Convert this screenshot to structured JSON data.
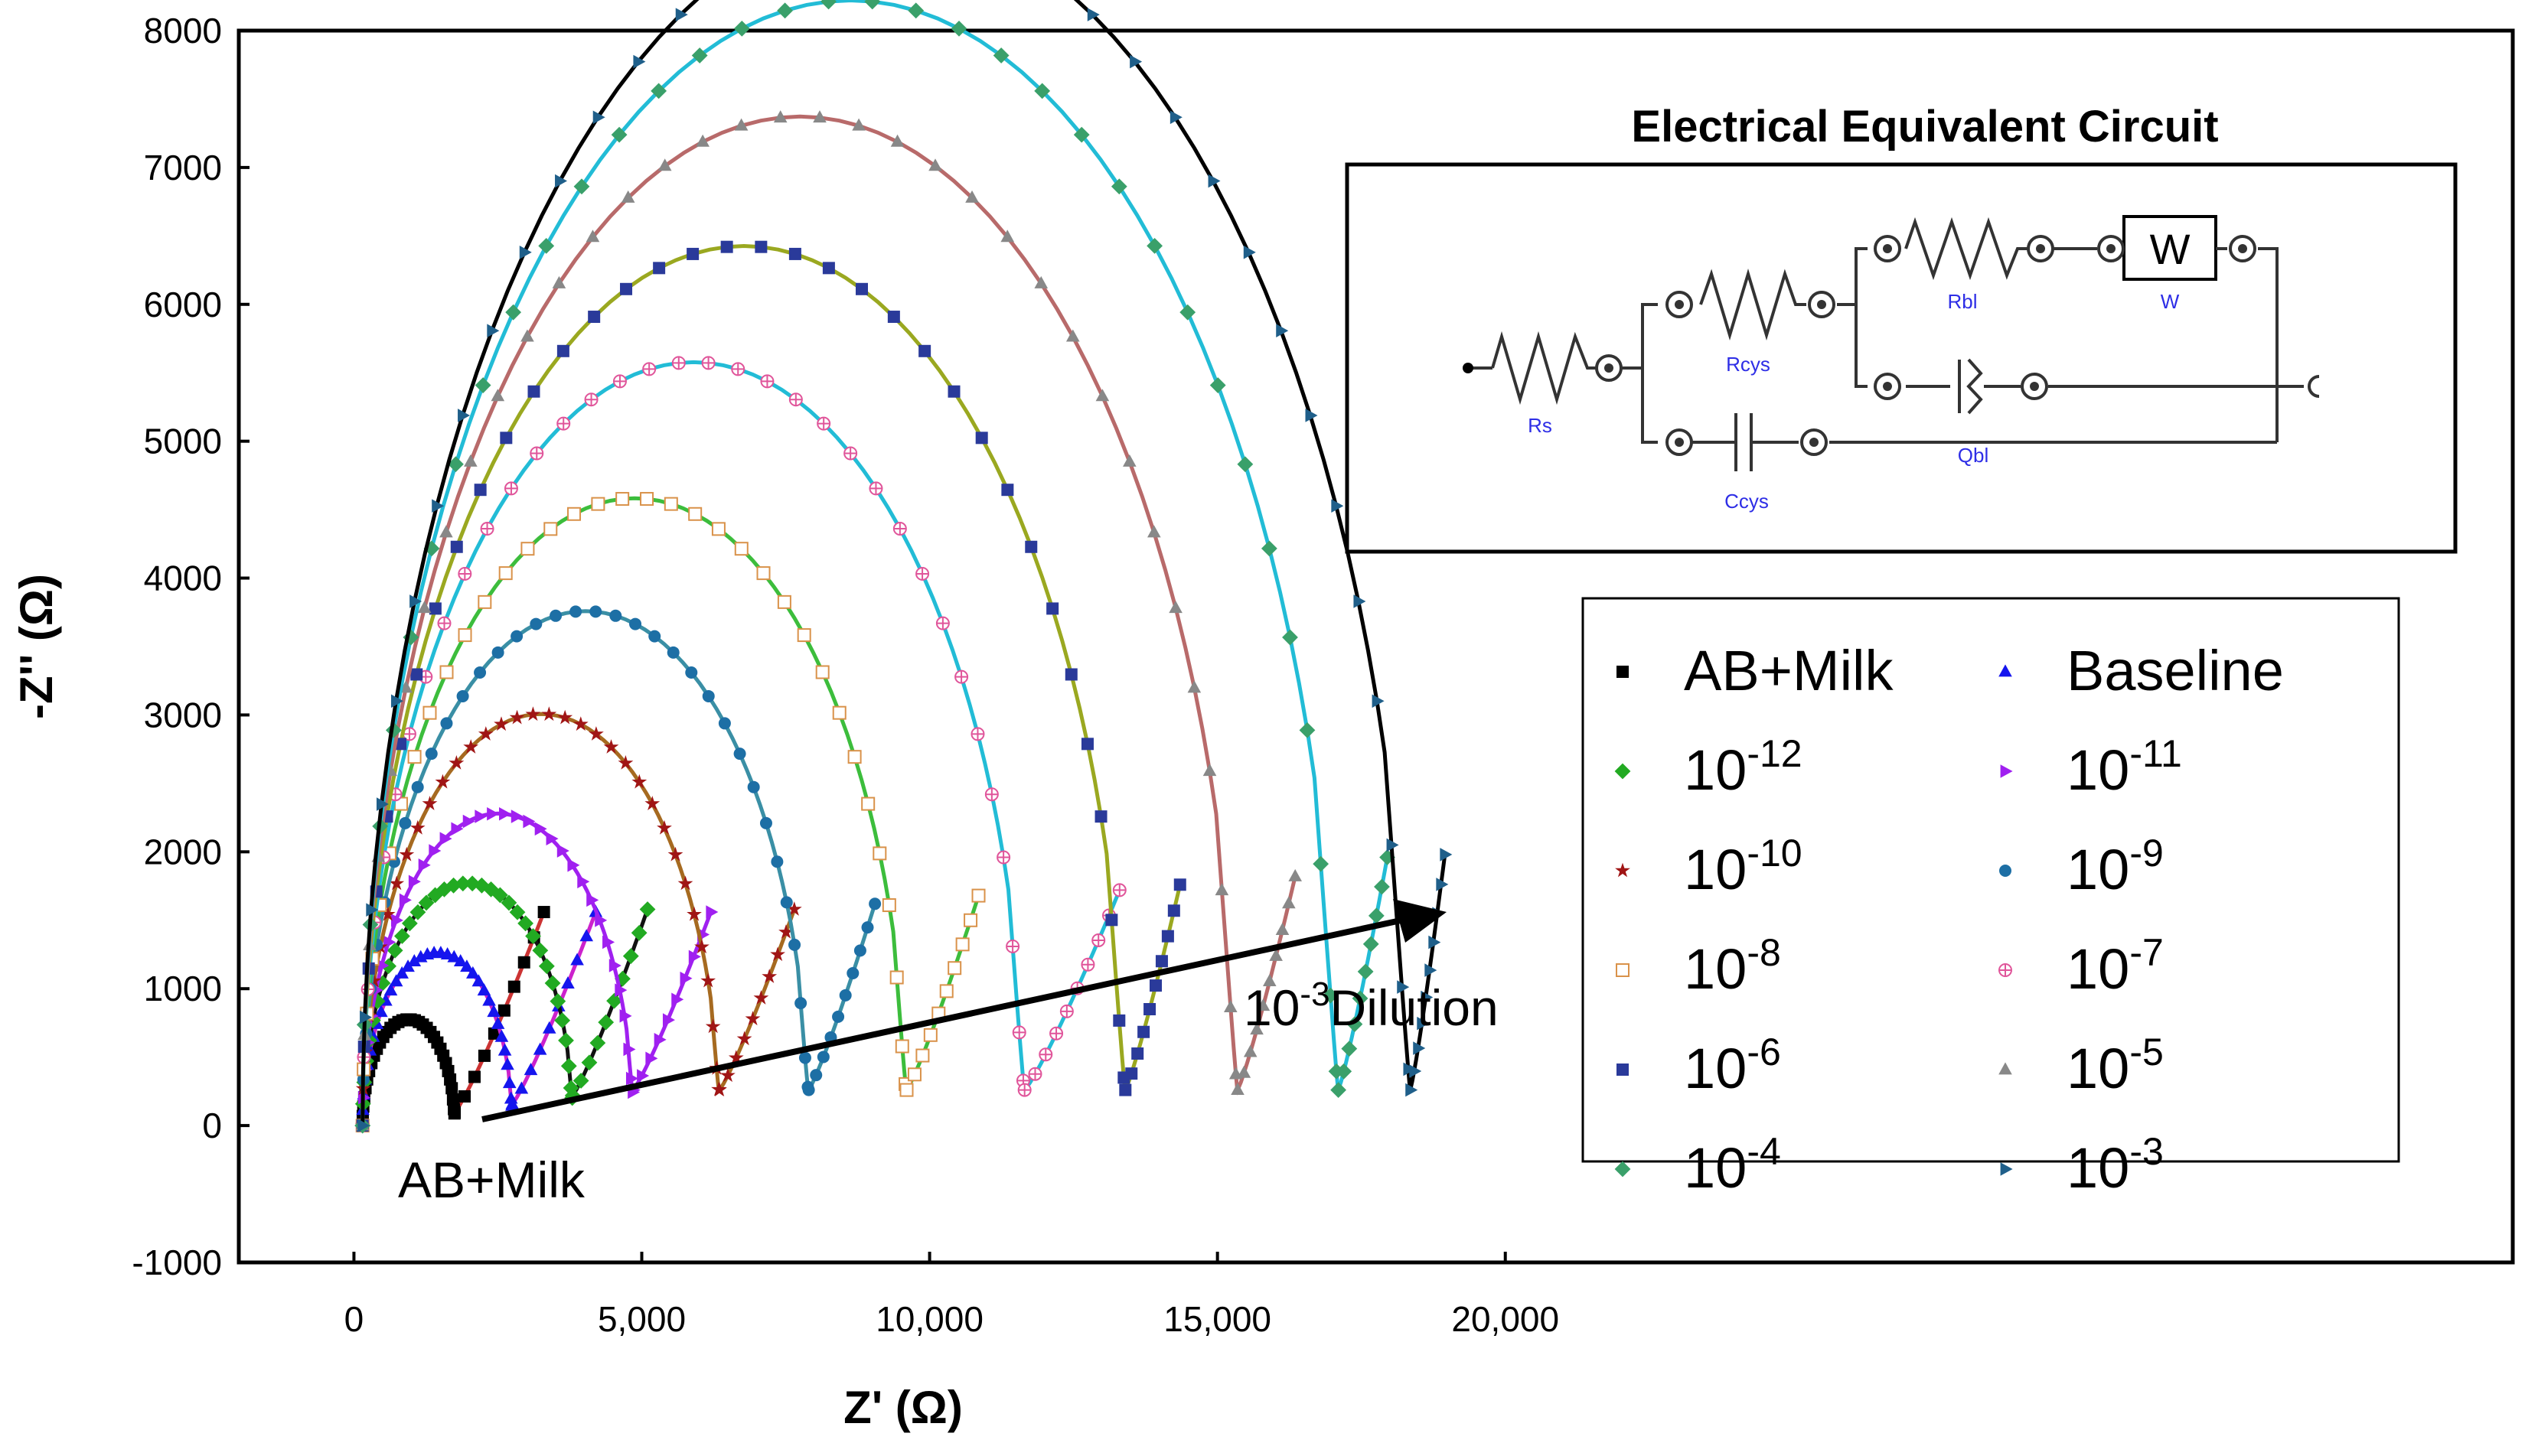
{
  "chart_data": {
    "type": "scatter",
    "xlabel": "Z' (Ω)",
    "ylabel": "-Z'' (Ω)",
    "xlim": [
      -2000,
      37500
    ],
    "ylim": [
      -1000,
      8000
    ],
    "xticks": [
      0,
      5000,
      10000,
      15000,
      20000
    ],
    "xtick_labels": [
      "0",
      "5,000",
      "10,000",
      "15,000",
      "20,000"
    ],
    "yticks": [
      -1000,
      0,
      1000,
      2000,
      3000,
      4000,
      5000,
      6000,
      7000,
      8000
    ],
    "ytick_labels": [
      "-1000",
      "0",
      "1000",
      "2000",
      "3000",
      "4000",
      "5000",
      "6000",
      "7000",
      "8000"
    ],
    "series": [
      {
        "name": "AB+Milk",
        "legend_base": "AB+Milk",
        "legend_exp": "",
        "rs": 150,
        "r1": 1600,
        "tail_end": 3300,
        "tail_top": 1560,
        "color": "#000000",
        "marker": "square",
        "fit_color": "#cc3333"
      },
      {
        "name": "Baseline",
        "legend_base": "Baseline",
        "legend_exp": "",
        "rs": 150,
        "r1": 2600,
        "tail_end": 4200,
        "tail_top": 1560,
        "color": "#1515ee",
        "marker": "triangle-up",
        "fit_color": "#cc22cc"
      },
      {
        "name": "10-12",
        "legend_base": "10",
        "legend_exp": "-12",
        "rs": 150,
        "r1": 3650,
        "tail_end": 5100,
        "tail_top": 1580,
        "color": "#22aa22",
        "marker": "diamond",
        "fit_color": "#111111"
      },
      {
        "name": "10-11",
        "legend_base": "10",
        "legend_exp": "-11",
        "rs": 150,
        "r1": 4700,
        "tail_end": 6200,
        "tail_top": 1560,
        "color": "#a020f0",
        "marker": "triangle-right",
        "fit_color": "#a020f0"
      },
      {
        "name": "10-10",
        "legend_base": "10",
        "legend_exp": "-10",
        "rs": 150,
        "r1": 6200,
        "tail_end": 7650,
        "tail_top": 1580,
        "color": "#a01515",
        "marker": "star",
        "fit_color": "#a66a20"
      },
      {
        "name": "10-9",
        "legend_base": "10",
        "legend_exp": "-9",
        "rs": 150,
        "r1": 7750,
        "tail_end": 9050,
        "tail_top": 1620,
        "color": "#1d6fa5",
        "marker": "circle",
        "fit_color": "#3a8fa5"
      },
      {
        "name": "10-8",
        "legend_base": "10",
        "legend_exp": "-8",
        "rs": 150,
        "r1": 9450,
        "tail_end": 10850,
        "tail_top": 1680,
        "color": "#d9924a",
        "marker": "square-open",
        "fit_color": "#3cbd3c"
      },
      {
        "name": "10-7",
        "legend_base": "10",
        "legend_exp": "-7",
        "rs": 150,
        "r1": 11500,
        "tail_end": 13300,
        "tail_top": 1720,
        "color": "#e0559a",
        "marker": "circle-cross",
        "fit_color": "#22bcd6"
      },
      {
        "name": "10-6",
        "legend_base": "10",
        "legend_exp": "-6",
        "rs": 150,
        "r1": 13250,
        "tail_end": 14350,
        "tail_top": 1760,
        "color": "#2a3a9a",
        "marker": "square",
        "fit_color": "#9aa820"
      },
      {
        "name": "10-5",
        "legend_base": "10",
        "legend_exp": "-5",
        "rs": 150,
        "r1": 15200,
        "tail_end": 16350,
        "tail_top": 1820,
        "color": "#888888",
        "marker": "triangle-up",
        "fit_color": "#b86a6a"
      },
      {
        "name": "10-4",
        "legend_base": "10",
        "legend_exp": "-4",
        "rs": 150,
        "r1": 16950,
        "tail_end": 17950,
        "tail_top": 1960,
        "color": "#3aa06a",
        "marker": "diamond",
        "fit_color": "#22bcd6"
      },
      {
        "name": "10-3",
        "legend_base": "10",
        "legend_exp": "-3",
        "rs": 150,
        "r1": 18200,
        "tail_end": 18950,
        "tail_top": 1980,
        "color": "#1f5f8a",
        "marker": "triangle-right",
        "fit_color": "#000000"
      }
    ],
    "annotations": {
      "arrow_label_base": "10",
      "arrow_label_exp": "-3",
      "arrow_label_rest": "Dilution",
      "start_label": "AB+Milk"
    },
    "circuit": {
      "title": "Electrical Equivalent Circuit",
      "components": [
        "Rs",
        "Rcys",
        "Rbl",
        "W",
        "Qbl",
        "Ccys"
      ],
      "w_box_text": "W"
    },
    "legend_position": "right"
  }
}
